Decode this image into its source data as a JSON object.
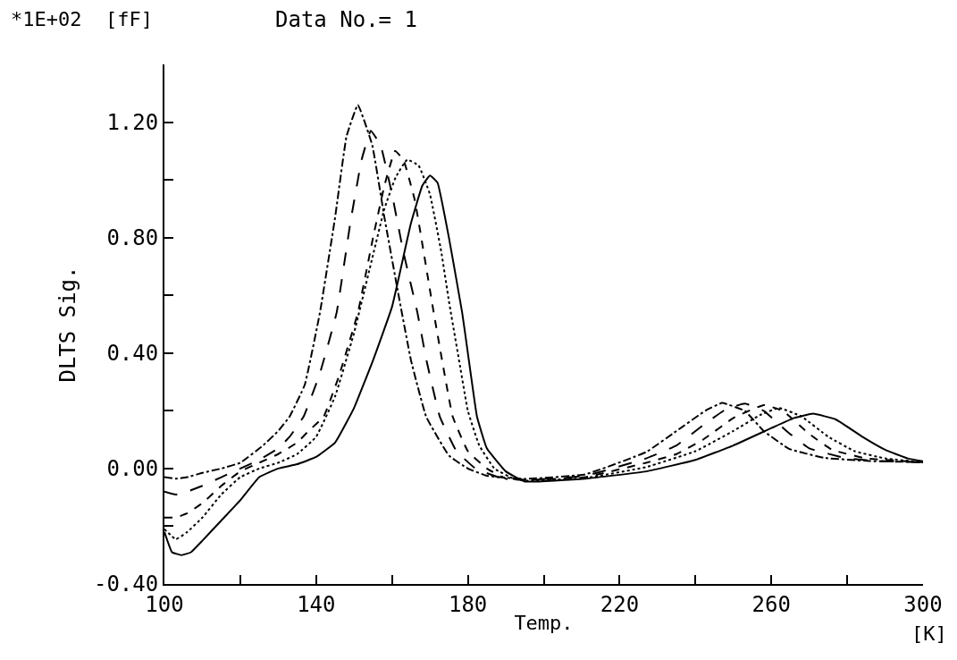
{
  "chart_data": {
    "type": "line",
    "title": "Data No.= 1",
    "xlabel": "Temp.",
    "ylabel": "DLTS Sig.",
    "annotations": [
      "*1E+02  [fF]",
      "[K]"
    ],
    "xlim": [
      100,
      300
    ],
    "ylim": [
      -0.4,
      1.4
    ],
    "xticks": [
      100,
      {
        "value": 120,
        "label": null
      },
      140,
      {
        "value": 160,
        "label": null
      },
      180,
      {
        "value": 200,
        "label": null
      },
      220,
      {
        "value": 240,
        "label": null
      },
      260,
      {
        "value": 280,
        "label": null
      },
      300
    ],
    "yticks": [
      {
        "value": -0.4,
        "label": "-0.40"
      },
      {
        "value": -0.2,
        "label": null
      },
      {
        "value": 0,
        "label": "0.00"
      },
      {
        "value": 0.2,
        "label": null
      },
      {
        "value": 0.4,
        "label": "0.40"
      },
      {
        "value": 0.6,
        "label": null
      },
      {
        "value": 0.8,
        "label": "0.80"
      },
      {
        "value": 1.0,
        "label": null
      },
      {
        "value": 1.2,
        "label": "1.20"
      }
    ],
    "marker": "none",
    "series": [
      {
        "color": "#000000",
        "line_style": "dashdot",
        "x": [
          100,
          103,
          106,
          110,
          115,
          120,
          126,
          130,
          133,
          137,
          141,
          145,
          148,
          151,
          154.8,
          158,
          161.6,
          165,
          169,
          175,
          180,
          185,
          195,
          211,
          227,
          235,
          242.6,
          247,
          253,
          258,
          264.7,
          274,
          286,
          300
        ],
        "values": [
          -0.03,
          -0.035,
          -0.03,
          -0.015,
          0.0,
          0.02,
          0.08,
          0.13,
          0.18,
          0.29,
          0.54,
          0.87,
          1.15,
          1.26,
          1.12,
          0.87,
          0.61,
          0.375,
          0.18,
          0.045,
          0.0,
          -0.025,
          -0.036,
          -0.02,
          0.057,
          0.13,
          0.2,
          0.227,
          0.2,
          0.13,
          0.068,
          0.037,
          0.026,
          0.022
        ]
      },
      {
        "color": "#000000",
        "line_style": "longdash",
        "x": [
          100,
          103,
          106,
          110,
          115,
          120,
          125,
          130,
          133,
          136.7,
          141,
          145.4,
          149,
          152,
          154.4,
          157,
          160,
          163,
          166.7,
          169,
          172.6,
          177,
          182,
          188,
          195,
          211,
          227,
          235,
          242,
          248,
          253,
          258,
          264,
          270,
          280,
          290,
          300
        ],
        "values": [
          -0.08,
          -0.09,
          -0.08,
          -0.06,
          -0.03,
          0.0,
          0.03,
          0.07,
          0.11,
          0.18,
          0.33,
          0.54,
          0.85,
          1.07,
          1.17,
          1.12,
          0.95,
          0.75,
          0.54,
          0.38,
          0.18,
          0.06,
          0.0,
          -0.03,
          -0.04,
          -0.025,
          0.035,
          0.08,
          0.15,
          0.205,
          0.225,
          0.2,
          0.13,
          0.07,
          0.035,
          0.025,
          0.022
        ]
      },
      {
        "color": "#000000",
        "line_style": "dashed",
        "x": [
          100,
          103,
          106,
          110,
          115,
          120,
          125,
          130,
          135,
          138,
          142,
          146,
          151,
          155,
          158,
          160.8,
          163,
          166,
          171,
          176,
          180,
          185,
          190,
          195,
          211,
          227,
          235,
          242,
          250,
          258,
          263,
          270,
          276,
          285,
          300
        ],
        "values": [
          -0.17,
          -0.17,
          -0.155,
          -0.12,
          -0.06,
          -0.01,
          0.02,
          0.05,
          0.09,
          0.13,
          0.18,
          0.32,
          0.54,
          0.8,
          0.98,
          1.1,
          1.07,
          0.93,
          0.54,
          0.18,
          0.06,
          0.0,
          -0.035,
          -0.04,
          -0.03,
          0.02,
          0.05,
          0.1,
          0.175,
          0.22,
          0.2,
          0.12,
          0.065,
          0.035,
          0.022
        ]
      },
      {
        "color": "#000000",
        "line_style": "dotted",
        "x": [
          100,
          103,
          106,
          110,
          115,
          120,
          125,
          130,
          135,
          140,
          145,
          150,
          155,
          158,
          161,
          164,
          167,
          170,
          173,
          175,
          178,
          180,
          183,
          187,
          192,
          195,
          211,
          227,
          240,
          250,
          257,
          262,
          268,
          275,
          282,
          290,
          300
        ],
        "values": [
          -0.21,
          -0.245,
          -0.22,
          -0.17,
          -0.09,
          -0.03,
          0.0,
          0.02,
          0.05,
          0.11,
          0.25,
          0.47,
          0.74,
          0.9,
          1.01,
          1.07,
          1.05,
          0.95,
          0.75,
          0.58,
          0.35,
          0.2,
          0.08,
          0.0,
          -0.035,
          -0.042,
          -0.033,
          0.005,
          0.06,
          0.13,
          0.185,
          0.21,
          0.18,
          0.11,
          0.06,
          0.035,
          0.022
        ]
      },
      {
        "color": "#000000",
        "line_style": "solid",
        "x": [
          100,
          102,
          104.5,
          107,
          110,
          115,
          120,
          125,
          130,
          135,
          140,
          145,
          150,
          155,
          160,
          165,
          168,
          170,
          172,
          175,
          178.5,
          180,
          182.4,
          185,
          190,
          195,
          211,
          227,
          240,
          250,
          260,
          266,
          271,
          277,
          284,
          290,
          296,
          300
        ],
        "values": [
          -0.22,
          -0.29,
          -0.3,
          -0.29,
          -0.25,
          -0.18,
          -0.11,
          -0.03,
          0.0,
          0.015,
          0.04,
          0.09,
          0.21,
          0.375,
          0.56,
          0.85,
          0.98,
          1.015,
          0.99,
          0.8,
          0.54,
          0.4,
          0.18,
          0.07,
          -0.01,
          -0.045,
          -0.035,
          -0.01,
          0.03,
          0.08,
          0.14,
          0.175,
          0.19,
          0.17,
          0.11,
          0.065,
          0.035,
          0.025
        ]
      }
    ]
  }
}
